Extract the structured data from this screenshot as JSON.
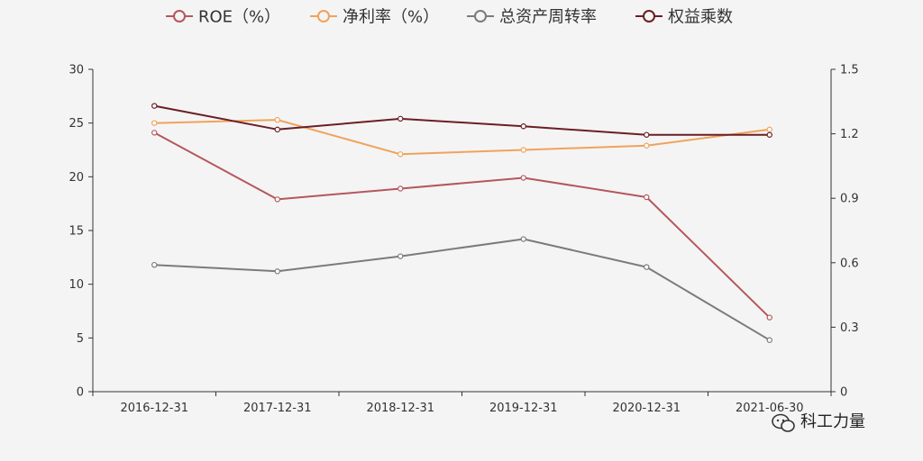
{
  "chart_data": {
    "type": "line",
    "categories": [
      "2016-12-31",
      "2017-12-31",
      "2018-12-31",
      "2019-12-31",
      "2020-12-31",
      "2021-06-30"
    ],
    "series": [
      {
        "name": "ROE（%）",
        "axis": "left",
        "color": "#b5575c",
        "values": [
          24.1,
          17.9,
          18.9,
          19.9,
          18.1,
          6.9
        ]
      },
      {
        "name": "净利率（%）",
        "axis": "left",
        "color": "#f0a35a",
        "values": [
          25.0,
          25.3,
          22.1,
          22.5,
          22.9,
          24.4
        ]
      },
      {
        "name": "总资产周转率",
        "axis": "right",
        "color": "#7b7b7b",
        "values": [
          0.59,
          0.56,
          0.63,
          0.71,
          0.58,
          0.24
        ]
      },
      {
        "name": "权益乘数",
        "axis": "right",
        "color": "#6b1e24",
        "values": [
          1.33,
          1.22,
          1.27,
          1.235,
          1.195,
          1.195
        ]
      }
    ],
    "y_left": {
      "range": [
        0,
        30
      ],
      "ticks": [
        0,
        5,
        10,
        15,
        20,
        25,
        30
      ]
    },
    "y_right": {
      "range": [
        0,
        1.5
      ],
      "ticks": [
        "0",
        "0.3",
        "0.6",
        "0.9",
        "1.2",
        "1.5"
      ]
    },
    "grid": false,
    "legend_position": "top"
  },
  "watermark": {
    "text": "科工力量"
  }
}
